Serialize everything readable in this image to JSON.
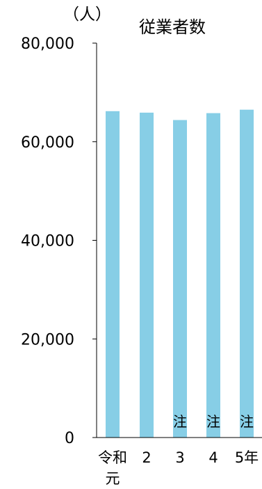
{
  "chart_data": {
    "type": "bar",
    "title": "従業者数",
    "unit_label": "（人）",
    "categories": [
      "令和\n元",
      "2",
      "3",
      "4",
      "5年"
    ],
    "values": [
      66200,
      65900,
      64400,
      65800,
      66500
    ],
    "notes": [
      "",
      "",
      "注",
      "注",
      "注"
    ],
    "ylim": [
      0,
      80000
    ],
    "yticks": [
      0,
      20000,
      40000,
      60000,
      80000
    ],
    "ytick_labels": [
      "0",
      "20,000",
      "40,000",
      "60,000",
      "80,000"
    ],
    "grid": false,
    "legend": "none",
    "bar_color": "#87CEE6",
    "axis_color": "#000000"
  }
}
